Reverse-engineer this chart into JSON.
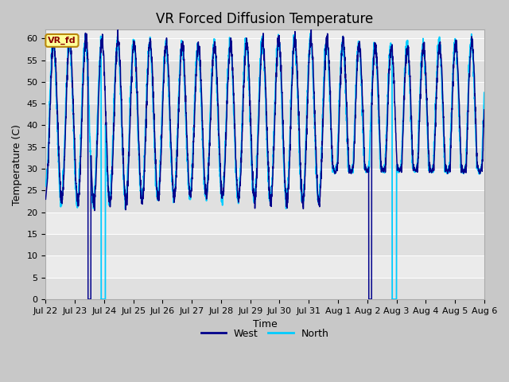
{
  "title": "VR Forced Diffusion Temperature",
  "xlabel": "Time",
  "ylabel": "Temperature (C)",
  "ylim": [
    0,
    62
  ],
  "yticks": [
    0,
    5,
    10,
    15,
    20,
    25,
    30,
    35,
    40,
    45,
    50,
    55,
    60
  ],
  "xtick_labels": [
    "Jul 22",
    "Jul 23",
    "Jul 24",
    "Jul 25",
    "Jul 26",
    "Jul 27",
    "Jul 28",
    "Jul 29",
    "Jul 30",
    "Jul 31",
    "Aug 1",
    "Aug 2",
    "Aug 3",
    "Aug 4",
    "Aug 5",
    "Aug 6"
  ],
  "west_color": "#00008B",
  "north_color": "#00CCFF",
  "annotation_text": "VR_fd",
  "annotation_bg": "#FFFF99",
  "annotation_border": "#B8860B",
  "annotation_text_color": "#8B0000",
  "fig_bg": "#C8C8C8",
  "band_colors": [
    "#E0E0E0",
    "#EBEBEB"
  ],
  "title_fontsize": 12,
  "axis_label_fontsize": 9,
  "tick_fontsize": 8,
  "legend_west_color": "#00008B",
  "legend_north_color": "#00CCFF",
  "n_points": 3000,
  "n_days": 15
}
